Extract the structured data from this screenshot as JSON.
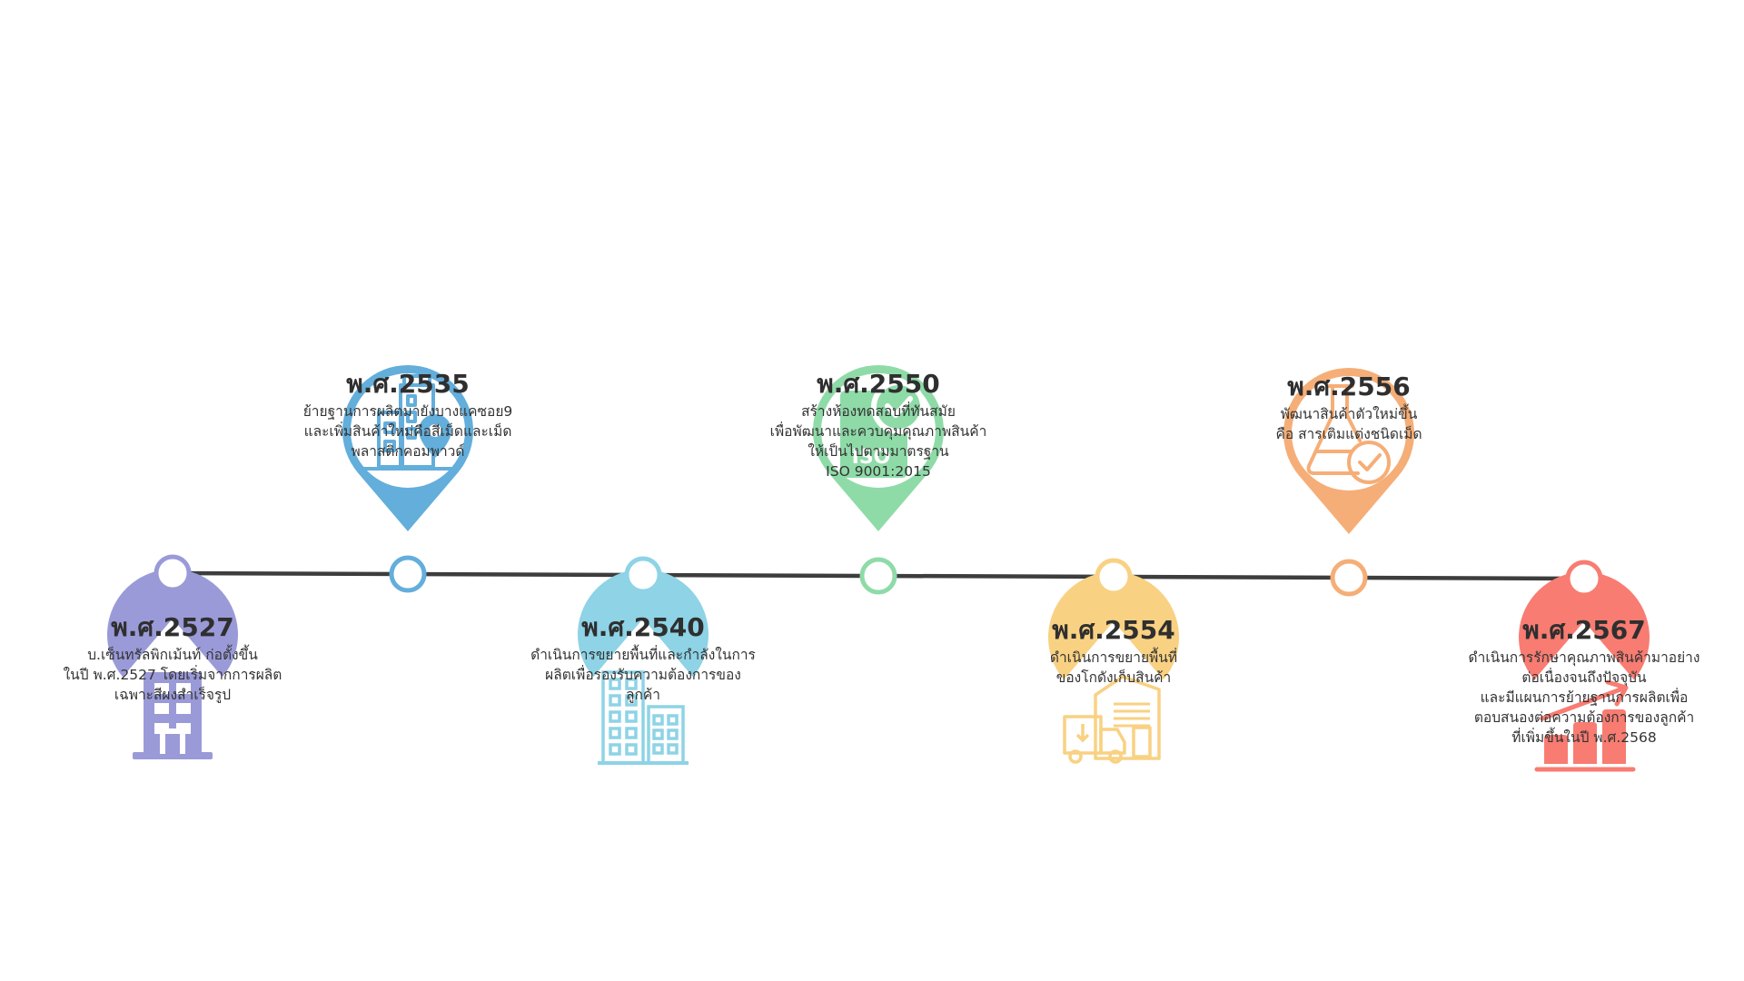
{
  "milestones": [
    {
      "year": "พ.ศ.2527",
      "position": "below",
      "color": "#9b9ad8",
      "icon": "office-building-icon",
      "lines": [
        "บ.เซ็นทรัลพิกเม้นท์ ก่อตั้งขึ้น",
        "ในปี พ.ศ.2527 โดยเริ่มจากการผลิต",
        "เฉพาะสีผงสำเร็จรูป"
      ]
    },
    {
      "year": "พ.ศ.2535",
      "position": "above",
      "color": "#63aedb",
      "icon": "building-location-pin-icon",
      "lines": [
        "ย้ายฐานการผลิตมายังบางแคซอย9",
        "และเพิ่มสินค้าใหม่คือสีเม็ดและเม็ด",
        "พลาสติกคอมพาวด์"
      ]
    },
    {
      "year": "พ.ศ.2540",
      "position": "below",
      "color": "#8ed3e6",
      "icon": "city-buildings-icon",
      "lines": [
        "ดำเนินการขยายพื้นที่และกำลังในการ",
        "ผลิตเพื่อรองรับความต้องการของ",
        "ลูกค้า"
      ]
    },
    {
      "year": "พ.ศ.2550",
      "position": "above",
      "color": "#8fdba8",
      "icon": "iso-certificate-icon",
      "lines": [
        "สร้างห้องทดสอบที่ทันสมัย",
        "เพื่อพัฒนาและควบคุมคุณภาพสินค้า",
        "ให้เป็นไปตามมาตรฐาน",
        "ISO 9001:2015"
      ]
    },
    {
      "year": "พ.ศ.2554",
      "position": "below",
      "color": "#f8d182",
      "icon": "warehouse-truck-icon",
      "lines": [
        "ดำเนินการขยายพื้นที่",
        "ของโกดังเก็บสินค้า"
      ]
    },
    {
      "year": "พ.ศ.2556",
      "position": "above",
      "color": "#f5ae77",
      "icon": "flask-check-icon",
      "lines": [
        "พัฒนาสินค้าตัวใหม่ขึ้น",
        "คือ สารเติมแต่งชนิดเม็ด"
      ]
    },
    {
      "year": "พ.ศ.2567",
      "position": "below",
      "color": "#f87c72",
      "icon": "growth-chart-icon",
      "lines": [
        "ดำเนินการรักษาคุณภาพสินค้ามาอย่าง",
        "ต่อเนื่องจนถึงปัจจุบัน",
        "และมีแผนการย้ายฐานการผลิตเพื่อ",
        "ตอบสนองต่อความต้องการของลูกค้า",
        "ที่เพิ่มขึ้นในปี พ.ศ.2568"
      ]
    }
  ]
}
